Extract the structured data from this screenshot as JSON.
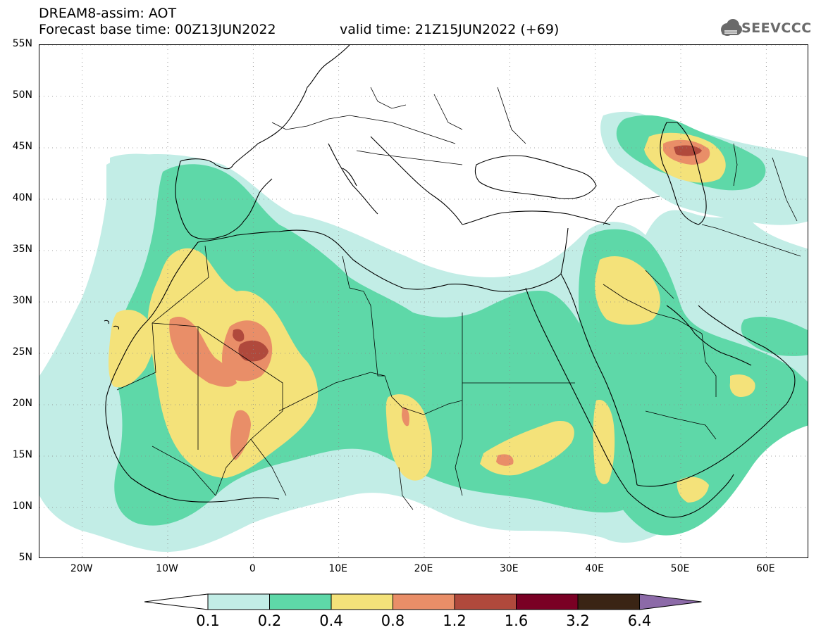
{
  "header": {
    "title_line1": "DREAM8-assim: AOT",
    "title_line2": "Forecast base time: 00Z13JUN2022",
    "valid_time": "valid time: 21Z15JUN2022 (+69)",
    "logo_text": "SEEVCCC"
  },
  "map": {
    "lat_labels": [
      "55N",
      "50N",
      "45N",
      "40N",
      "35N",
      "30N",
      "25N",
      "20N",
      "15N",
      "10N",
      "5N"
    ],
    "lon_labels": [
      "20W",
      "10W",
      "0",
      "10E",
      "20E",
      "30E",
      "40E",
      "50E",
      "60E"
    ],
    "lat_range": [
      5,
      55
    ],
    "lon_range": [
      -25,
      65
    ],
    "coastline_color": "#000000"
  },
  "colorbar": {
    "labels": [
      "0.1",
      "0.2",
      "0.4",
      "0.8",
      "1.2",
      "1.6",
      "3.2",
      "6.4"
    ],
    "colors": [
      "#ffffff",
      "#c2ede6",
      "#5ed8a8",
      "#f4e27a",
      "#e98e68",
      "#b0493c",
      "#7a0024",
      "#3a2414",
      "#8c6aa8"
    ]
  },
  "field_colors": {
    "level1": "#c2ede6",
    "level2": "#5ed8a8",
    "level3": "#f4e27a",
    "level4": "#e98e68",
    "level5": "#b0493c"
  }
}
